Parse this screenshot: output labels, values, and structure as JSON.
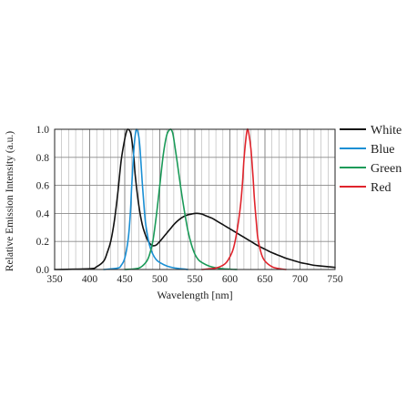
{
  "chart_data": {
    "type": "line",
    "xlabel": "Wavelength [nm]",
    "ylabel": "Relative Emission Intensity (a.u.)",
    "xlim": [
      350,
      750
    ],
    "ylim": [
      0.0,
      1.0
    ],
    "xticks": [
      350,
      400,
      450,
      500,
      550,
      600,
      650,
      700,
      750
    ],
    "xtick_labels": [
      "350",
      "400",
      "450",
      "500",
      "550",
      "600",
      "650",
      "700",
      "750"
    ],
    "yticks": [
      0.0,
      0.2,
      0.4,
      0.6,
      0.8,
      1.0
    ],
    "ytick_labels": [
      "0.0",
      "0.2",
      "0.4",
      "0.6",
      "0.8",
      "1.0"
    ],
    "x_minor_step": 10,
    "grid": true,
    "legend_position": "right",
    "series": [
      {
        "name": "White",
        "color": "#111111",
        "x": [
          350,
          400,
          410,
          420,
          425,
          430,
          435,
          440,
          445,
          450,
          453,
          455,
          458,
          460,
          463,
          465,
          470,
          475,
          480,
          485,
          490,
          495,
          500,
          505,
          510,
          515,
          520,
          525,
          530,
          535,
          540,
          545,
          550,
          555,
          560,
          565,
          570,
          575,
          580,
          585,
          590,
          595,
          600,
          610,
          620,
          630,
          640,
          650,
          660,
          670,
          680,
          690,
          700,
          710,
          720,
          730,
          740,
          750
        ],
        "y": [
          0.0,
          0.005,
          0.02,
          0.06,
          0.12,
          0.2,
          0.34,
          0.54,
          0.78,
          0.93,
          0.99,
          1.0,
          0.98,
          0.93,
          0.8,
          0.67,
          0.46,
          0.32,
          0.24,
          0.19,
          0.17,
          0.175,
          0.2,
          0.23,
          0.26,
          0.29,
          0.32,
          0.345,
          0.365,
          0.38,
          0.39,
          0.395,
          0.4,
          0.4,
          0.395,
          0.385,
          0.375,
          0.365,
          0.35,
          0.335,
          0.32,
          0.305,
          0.29,
          0.26,
          0.23,
          0.2,
          0.17,
          0.145,
          0.12,
          0.1,
          0.08,
          0.065,
          0.05,
          0.04,
          0.03,
          0.025,
          0.02,
          0.015
        ]
      },
      {
        "name": "Blue",
        "color": "#1a8fd4",
        "x": [
          420,
          440,
          445,
          450,
          455,
          458,
          460,
          463,
          465,
          467,
          470,
          472,
          475,
          478,
          480,
          485,
          490,
          495,
          500,
          510,
          520,
          530,
          540
        ],
        "y": [
          0.0,
          0.01,
          0.03,
          0.08,
          0.22,
          0.4,
          0.6,
          0.85,
          0.96,
          1.0,
          0.95,
          0.85,
          0.62,
          0.42,
          0.32,
          0.18,
          0.11,
          0.07,
          0.05,
          0.025,
          0.012,
          0.005,
          0.0
        ]
      },
      {
        "name": "Green",
        "color": "#1a9a58",
        "x": [
          450,
          470,
          480,
          485,
          490,
          495,
          500,
          505,
          510,
          515,
          518,
          520,
          525,
          530,
          535,
          540,
          545,
          550,
          555,
          560,
          570,
          580,
          590,
          600,
          610
        ],
        "y": [
          0.0,
          0.01,
          0.05,
          0.1,
          0.2,
          0.38,
          0.6,
          0.82,
          0.96,
          1.0,
          0.98,
          0.93,
          0.76,
          0.58,
          0.42,
          0.28,
          0.18,
          0.11,
          0.07,
          0.05,
          0.025,
          0.012,
          0.005,
          0.002,
          0.0
        ]
      },
      {
        "name": "Red",
        "color": "#e0242c",
        "x": [
          560,
          580,
          590,
          595,
          600,
          605,
          610,
          615,
          618,
          620,
          623,
          625,
          627,
          630,
          633,
          635,
          638,
          640,
          645,
          650,
          660,
          670,
          680
        ],
        "y": [
          0.0,
          0.01,
          0.03,
          0.05,
          0.09,
          0.15,
          0.27,
          0.45,
          0.62,
          0.78,
          0.94,
          1.0,
          0.97,
          0.86,
          0.66,
          0.5,
          0.32,
          0.22,
          0.11,
          0.06,
          0.02,
          0.006,
          0.0
        ]
      }
    ]
  }
}
